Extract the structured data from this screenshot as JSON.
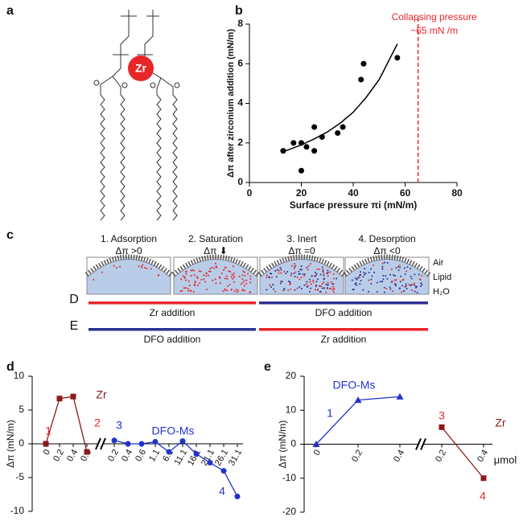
{
  "molecule": {
    "panel_label": "a",
    "ion": "Zr"
  },
  "diagram": {
    "panel_label": "c",
    "stages": [
      {
        "title": "1. Adsorption",
        "effect": "Δπ >0"
      },
      {
        "title": "2. Saturation",
        "effect": "Δπ ⬇"
      },
      {
        "title": "3. Inert",
        "effect": "Δπ =0"
      },
      {
        "title": "4. Desorption",
        "effect": "Δπ <0"
      }
    ],
    "layers": [
      "Air",
      "Lipid",
      "H₂O"
    ],
    "rows": [
      {
        "label": "D",
        "segments": [
          {
            "text": "Zr addition",
            "color": "#e8262a"
          },
          {
            "text": "DFO addition",
            "color": "#2e3192"
          }
        ]
      },
      {
        "label": "E",
        "segments": [
          {
            "text": "DFO addition",
            "color": "#2e3192"
          },
          {
            "text": "Zr addition",
            "color": "#e8262a"
          }
        ]
      }
    ]
  },
  "chart_data": [
    {
      "type": "scatter",
      "panel_label": "b",
      "x_label": "Surface pressure πi (mN/m)",
      "y_label": "Δπ after zirconium addition (mN/m)",
      "x": [
        13,
        17,
        20,
        20,
        22,
        25,
        25,
        28,
        34,
        36,
        43,
        44,
        57
      ],
      "values": [
        1.6,
        2.0,
        2.0,
        0.6,
        1.8,
        2.8,
        1.6,
        2.3,
        2.5,
        2.8,
        5.2,
        6.0,
        6.3
      ],
      "color": "#000000",
      "fit": {
        "x": [
          13,
          20,
          25,
          30,
          35,
          40,
          45,
          50,
          57
        ],
        "values": [
          1.55,
          1.9,
          2.2,
          2.55,
          3.0,
          3.55,
          4.3,
          5.2,
          7.0
        ]
      },
      "collapse_x": 65,
      "annotation": [
        "Collapsing pressure",
        "~65 mN /m"
      ],
      "annotation_color": "#e8262a",
      "xlim": [
        0,
        80
      ],
      "xticks": [
        0,
        20,
        40,
        60,
        80
      ],
      "ylim": [
        0,
        8
      ],
      "yticks": [
        0,
        2,
        4,
        6,
        8
      ]
    },
    {
      "type": "line",
      "panel_label": "d",
      "y_label": "Δπ (mN/m)",
      "categories": [
        "0",
        "0.2",
        "0.4",
        "0.6",
        "0.2",
        "0.4",
        "0.6",
        "1.1",
        "6.1",
        "11.1",
        "16.1",
        "21.1",
        "26.1",
        "31.1"
      ],
      "series": [
        {
          "name": "Zr",
          "color": "#8b1a1a",
          "marker": "square",
          "values": [
            0,
            6.7,
            7.0,
            -1.2,
            null,
            null,
            null,
            null,
            null,
            null,
            null,
            null,
            null,
            null
          ]
        },
        {
          "name": "DFO-Ms",
          "color": "#2233cc",
          "marker": "circle",
          "values": [
            null,
            null,
            null,
            null,
            0.5,
            0.0,
            0.0,
            0.3,
            -1.2,
            0.4,
            -1.5,
            -2.8,
            -4.0,
            -7.8
          ]
        }
      ],
      "annotations": [
        {
          "text": "1",
          "color": "#e8262a"
        },
        {
          "text": "2",
          "color": "#e8262a"
        },
        {
          "text": "3",
          "color": "#2233cc"
        },
        {
          "text": "4",
          "color": "#2233cc"
        }
      ],
      "ylim": [
        -10,
        10
      ],
      "yticks": [
        -10,
        -5,
        0,
        5,
        10
      ]
    },
    {
      "type": "line",
      "panel_label": "e",
      "y_label": "Δπ (mN/m)",
      "x_label": "μmol",
      "categories": [
        "0",
        "0.2",
        "0.4",
        "0.2",
        "0.4"
      ],
      "series": [
        {
          "name": "DFO-Ms",
          "color": "#2233cc",
          "marker": "triangle",
          "values": [
            0,
            13,
            14,
            null,
            null
          ]
        },
        {
          "name": "Zr",
          "color": "#8b1a1a",
          "marker": "square",
          "values": [
            null,
            null,
            null,
            5,
            -10
          ]
        }
      ],
      "annotations": [
        {
          "text": "1",
          "color": "#2233cc"
        },
        {
          "text": "3",
          "color": "#e8262a"
        },
        {
          "text": "4",
          "color": "#e8262a"
        }
      ],
      "ylim": [
        -20,
        20
      ],
      "yticks": [
        -20,
        -10,
        0,
        10,
        20
      ]
    }
  ]
}
